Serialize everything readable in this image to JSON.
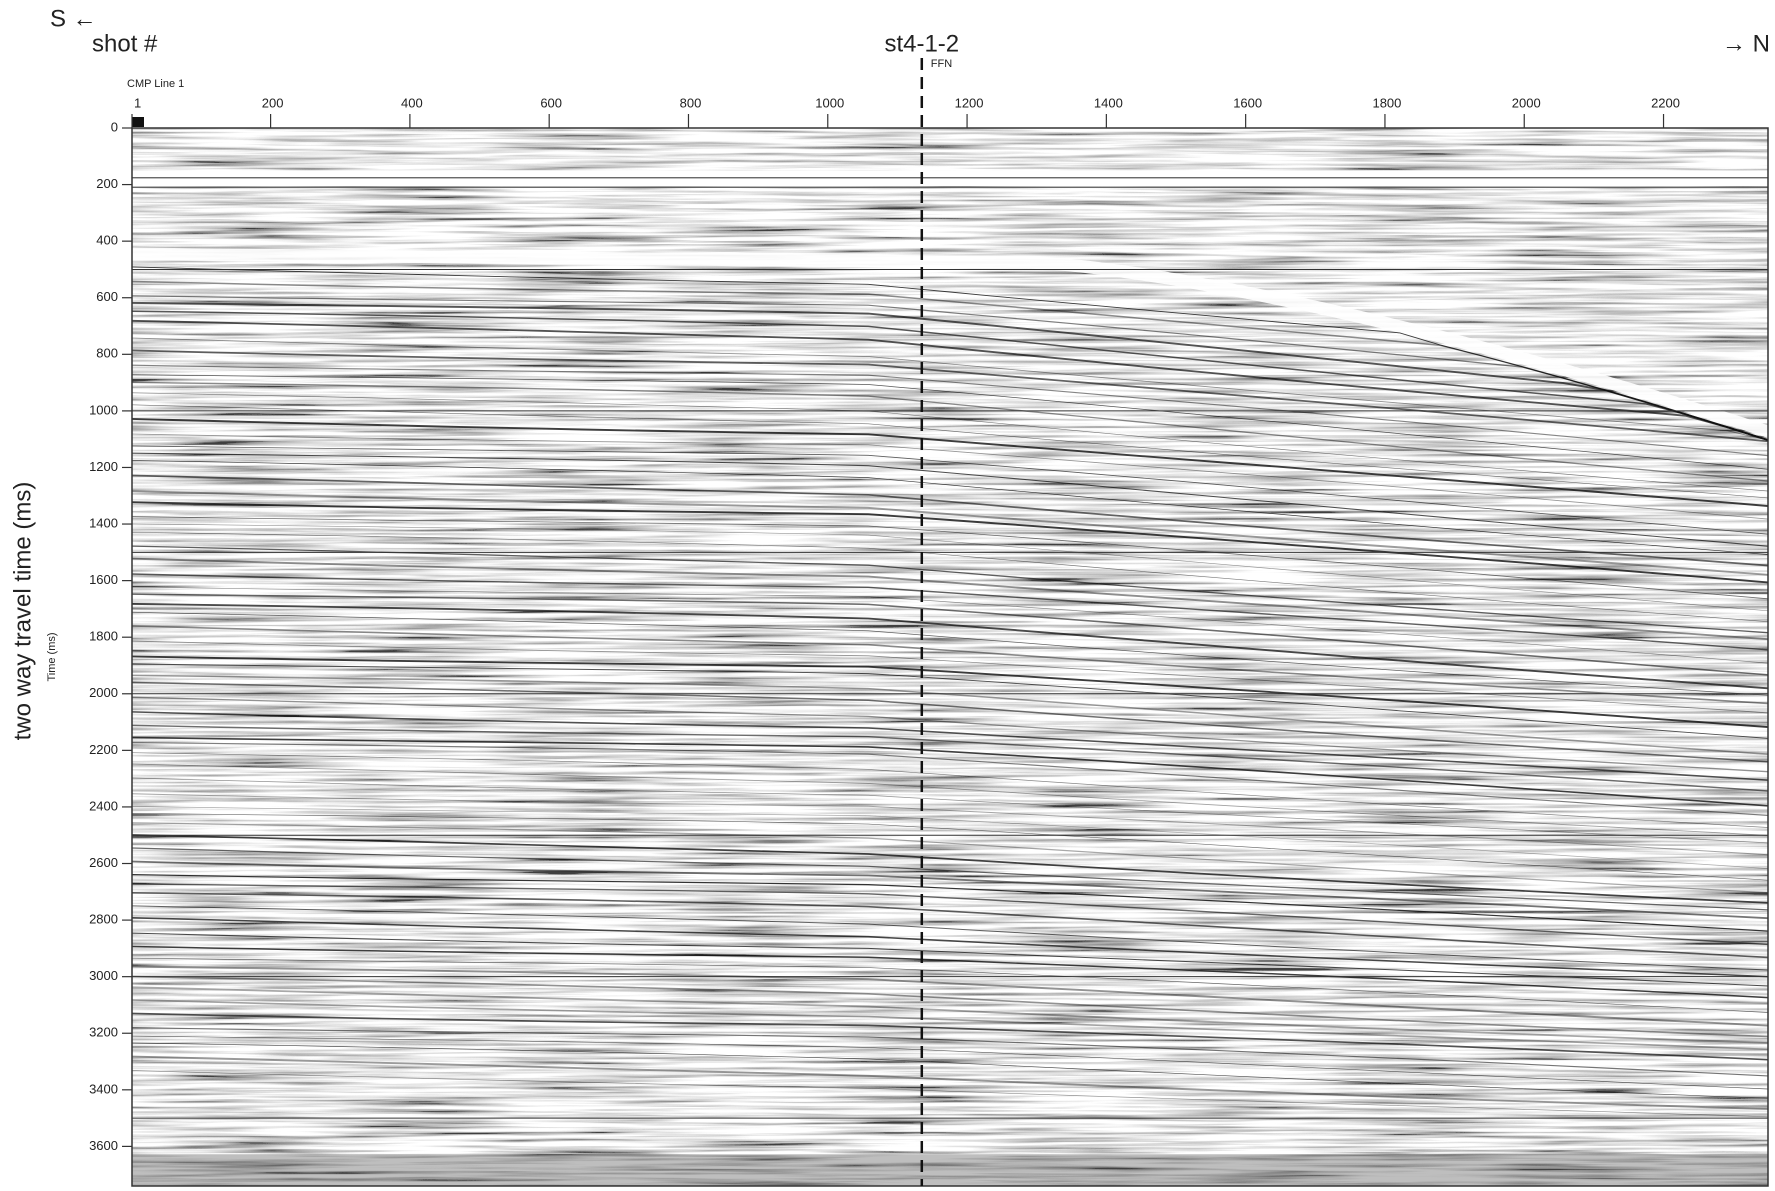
{
  "chart_data": {
    "type": "seismic",
    "direction_left": "S ←",
    "direction_right": "→ N",
    "x_caption": "shot #",
    "x_axis_label": "CMP Line 1",
    "y_axis_label": "two way travel time (ms)",
    "y_axis_sublabel": "Time (ms)",
    "xlim": [
      1,
      2350
    ],
    "xticks": [
      1,
      200,
      400,
      600,
      800,
      1000,
      1200,
      1400,
      1600,
      1800,
      2000,
      2200
    ],
    "ylim": [
      0,
      3740
    ],
    "yticks": [
      0,
      200,
      400,
      600,
      800,
      1000,
      1200,
      1400,
      1600,
      1800,
      2000,
      2200,
      2400,
      2600,
      2800,
      3000,
      3200,
      3400,
      3600
    ],
    "gridlines": [
      500,
      1000,
      1500,
      2000,
      2500,
      3000,
      3500
    ],
    "markers": [
      {
        "x": 1135,
        "label": "st4-1-2",
        "sublabel": "FFN"
      }
    ]
  }
}
